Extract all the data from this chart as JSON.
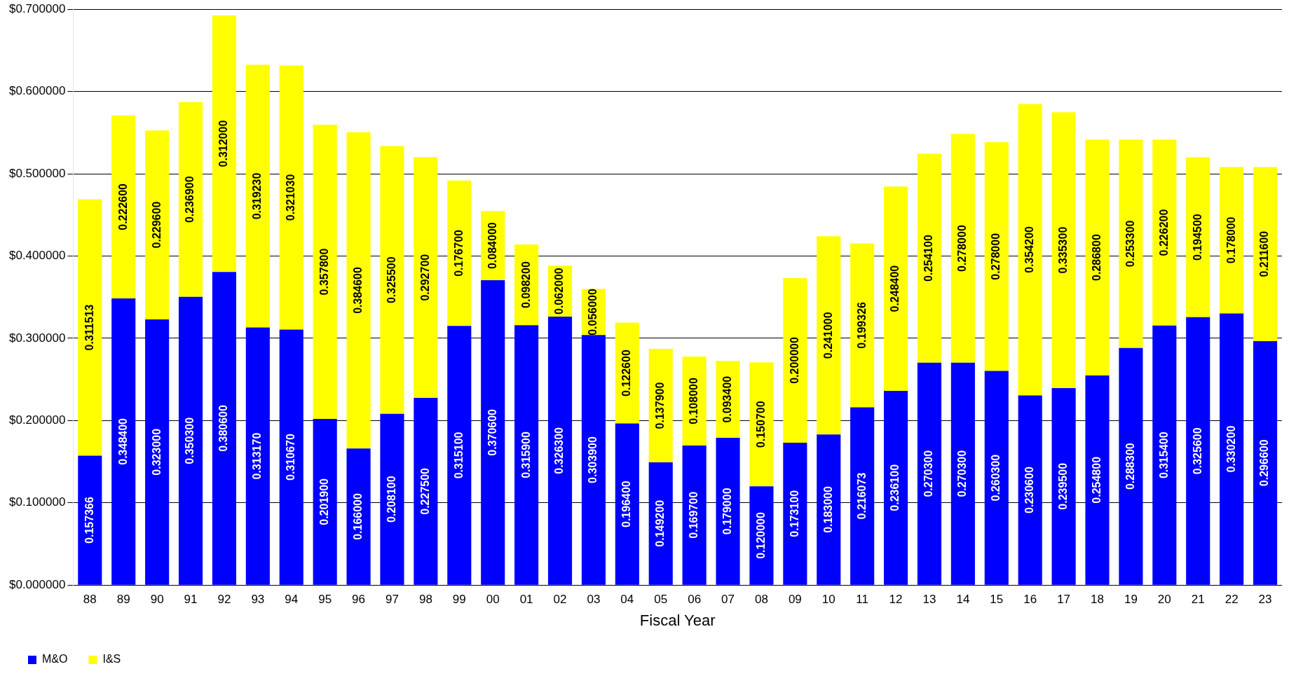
{
  "chart_data": {
    "type": "bar",
    "stacked": true,
    "xlabel": "Fiscal Year",
    "categories": [
      "88",
      "89",
      "90",
      "91",
      "92",
      "93",
      "94",
      "95",
      "96",
      "97",
      "98",
      "99",
      "00",
      "01",
      "02",
      "03",
      "04",
      "05",
      "06",
      "07",
      "08",
      "09",
      "10",
      "11",
      "12",
      "13",
      "14",
      "15",
      "16",
      "17",
      "18",
      "19",
      "20",
      "21",
      "22",
      "23"
    ],
    "series": [
      {
        "name": "M&O",
        "color": "#0000ff",
        "values": [
          0.157366,
          0.3484,
          0.323,
          0.3503,
          0.3806,
          0.31317,
          0.31067,
          0.2019,
          0.166,
          0.2081,
          0.2275,
          0.3151,
          0.3706,
          0.3159,
          0.3263,
          0.3039,
          0.1964,
          0.1492,
          0.1697,
          0.179,
          0.12,
          0.1731,
          0.183,
          0.216073,
          0.2361,
          0.2703,
          0.2703,
          0.2603,
          0.2306,
          0.2395,
          0.2548,
          0.2883,
          0.3154,
          0.3256,
          0.3302,
          0.2966
        ],
        "value_labels": [
          "0.157366",
          "0.348400",
          "0.323000",
          "0.350300",
          "0.380600",
          "0.313170",
          "0.310670",
          "0.201900",
          "0.166000",
          "0.208100",
          "0.227500",
          "0.315100",
          "0.370600",
          "0.315900",
          "0.326300",
          "0.303900",
          "0.196400",
          "0.149200",
          "0.169700",
          "0.179000",
          "0.120000",
          "0.173100",
          "0.183000",
          "0.216073",
          "0.236100",
          "0.270300",
          "0.270300",
          "0.260300",
          "0.230600",
          "0.239500",
          "0.254800",
          "0.288300",
          "0.315400",
          "0.325600",
          "0.330200",
          "0.296600"
        ]
      },
      {
        "name": "I&S",
        "color": "#ffff00",
        "values": [
          0.311513,
          0.2226,
          0.2296,
          0.2369,
          0.312,
          0.31923,
          0.32103,
          0.3578,
          0.3846,
          0.3255,
          0.2927,
          0.1767,
          0.084,
          0.0982,
          0.062,
          0.056,
          0.1226,
          0.1379,
          0.108,
          0.0934,
          0.1507,
          0.2,
          0.241,
          0.199326,
          0.2484,
          0.2541,
          0.278,
          0.278,
          0.3542,
          0.3353,
          0.2868,
          0.2533,
          0.2262,
          0.1945,
          0.178,
          0.2116
        ],
        "value_labels": [
          "0.311513",
          "0.222600",
          "0.229600",
          "0.236900",
          "0.312000",
          "0.319230",
          "0.321030",
          "0.357800",
          "0.384600",
          "0.325500",
          "0.292700",
          "0.176700",
          "0.084000",
          "0.098200",
          "0.062000",
          "0.056000",
          "0.122600",
          "0.137900",
          "0.108000",
          "0.093400",
          "0.150700",
          "0.200000",
          "0.241000",
          "0.199326",
          "0.248400",
          "0.254100",
          "0.278000",
          "0.278000",
          "0.354200",
          "0.335300",
          "0.286800",
          "0.253300",
          "0.226200",
          "0.194500",
          "0.178000",
          "0.211600"
        ]
      }
    ],
    "ylim": [
      0,
      0.7
    ],
    "yticks": [
      {
        "value": 0,
        "label": "$0.000000"
      },
      {
        "value": 0.1,
        "label": "$0.100000"
      },
      {
        "value": 0.2,
        "label": "$0.200000"
      },
      {
        "value": 0.3,
        "label": "$0.300000"
      },
      {
        "value": 0.4,
        "label": "$0.400000"
      },
      {
        "value": 0.5,
        "label": "$0.500000"
      },
      {
        "value": 0.6,
        "label": "$0.600000"
      },
      {
        "value": 0.7,
        "label": "$0.700000"
      }
    ],
    "grid": "y",
    "legend": "bottom left"
  }
}
